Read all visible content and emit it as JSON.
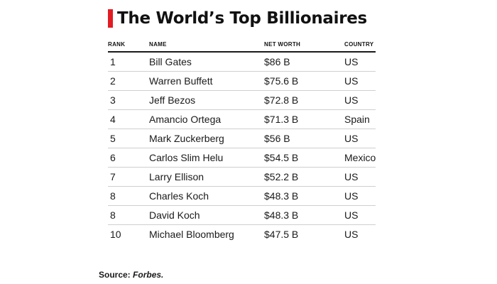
{
  "chart_data": {
    "type": "table",
    "title": "The World’s Top Billionaires",
    "columns": [
      "RANK",
      "NAME",
      "NET WORTH",
      "COUNTRY"
    ],
    "rows": [
      [
        "1",
        "Bill Gates",
        "$86 B",
        "US"
      ],
      [
        "2",
        "Warren Buffett",
        "$75.6 B",
        "US"
      ],
      [
        "3",
        "Jeff Bezos",
        "$72.8 B",
        "US"
      ],
      [
        "4",
        "Amancio Ortega",
        "$71.3 B",
        "Spain"
      ],
      [
        "5",
        "Mark Zuckerberg",
        "$56 B",
        "US"
      ],
      [
        "6",
        "Carlos Slim Helu",
        "$54.5 B",
        "Mexico"
      ],
      [
        "7",
        "Larry Ellison",
        "$52.2 B",
        "US"
      ],
      [
        "8",
        "Charles Koch",
        "$48.3 B",
        "US"
      ],
      [
        "8",
        "David Koch",
        "$48.3 B",
        "US"
      ],
      [
        "10",
        "Michael Bloomberg",
        "$47.5 B",
        "US"
      ]
    ],
    "net_worth_billions_usd": [
      86,
      75.6,
      72.8,
      71.3,
      56,
      54.5,
      52.2,
      48.3,
      48.3,
      47.5
    ]
  },
  "source": {
    "label": "Source:",
    "name": "Forbes."
  },
  "colors": {
    "accent": "#e31b23",
    "text": "#1a1a1a",
    "rule": "#cfcfcf"
  }
}
